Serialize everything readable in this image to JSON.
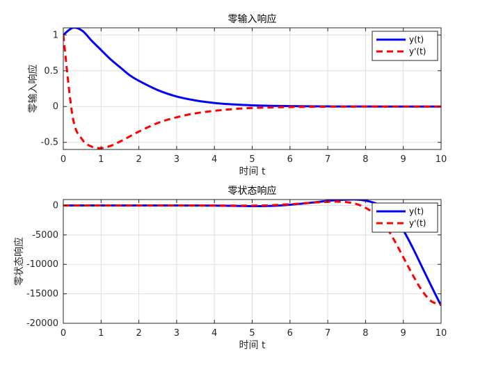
{
  "colors": {
    "y": "#0000ff",
    "yp": "#ff0000",
    "grid": "#dfdfdf",
    "axis": "#262626"
  },
  "chart_data": [
    {
      "type": "line",
      "title": "零输入响应",
      "xlabel": "时间 t",
      "ylabel": "零输入响应",
      "xlim": [
        0,
        10
      ],
      "ylim": [
        -0.6,
        1.1
      ],
      "xticks": [
        "0",
        "1",
        "2",
        "3",
        "4",
        "5",
        "6",
        "7",
        "8",
        "9",
        "10"
      ],
      "yticks": [
        -0.5,
        0,
        0.5,
        1
      ],
      "ytick_labels": [
        "-0.5",
        "0",
        "0.5",
        "1"
      ],
      "grid": true,
      "legend": "top-right",
      "x": [
        0,
        0.25,
        0.5,
        0.75,
        1,
        1.25,
        1.5,
        1.75,
        2,
        2.5,
        3,
        3.5,
        4,
        4.5,
        5,
        5.5,
        6,
        6.5,
        7,
        7.5,
        8,
        8.5,
        9,
        9.5,
        10
      ],
      "series": [
        {
          "name": "y(t)",
          "style": "solid",
          "values": [
            1.0,
            1.1,
            1.06,
            0.92,
            0.79,
            0.66,
            0.55,
            0.44,
            0.36,
            0.23,
            0.14,
            0.085,
            0.05,
            0.03,
            0.017,
            0.01,
            0.006,
            0.003,
            0.002,
            0.001,
            0.0005,
            0.0003,
            0.0002,
            0.0001,
            0
          ]
        },
        {
          "name": "y'(t)",
          "style": "dashed",
          "values": [
            1.0,
            -0.15,
            -0.46,
            -0.56,
            -0.58,
            -0.55,
            -0.49,
            -0.42,
            -0.35,
            -0.23,
            -0.15,
            -0.095,
            -0.06,
            -0.035,
            -0.02,
            -0.012,
            -0.007,
            -0.004,
            -0.002,
            -0.001,
            -0.0006,
            -0.0003,
            -0.0002,
            -0.0001,
            0
          ]
        }
      ]
    },
    {
      "type": "line",
      "title": "零状态响应",
      "xlabel": "时间 t",
      "ylabel": "零状态响应",
      "xlim": [
        0,
        10
      ],
      "ylim": [
        -20000,
        1000
      ],
      "xticks": [
        "0",
        "1",
        "2",
        "3",
        "4",
        "5",
        "6",
        "7",
        "8",
        "9",
        "10"
      ],
      "yticks": [
        -20000,
        -15000,
        -10000,
        -5000,
        0
      ],
      "ytick_labels": [
        "-20000",
        "-15000",
        "-10000",
        "-5000",
        "0"
      ],
      "grid": true,
      "legend": "top-right",
      "x": [
        0,
        1,
        2,
        3,
        4,
        5,
        5.5,
        6,
        6.5,
        7,
        7.25,
        7.5,
        7.75,
        8,
        8.25,
        8.5,
        8.75,
        9,
        9.25,
        9.5,
        9.75,
        10
      ],
      "series": [
        {
          "name": "y(t)",
          "style": "solid",
          "values": [
            0,
            0,
            0,
            0,
            -30,
            -120,
            -80,
            120,
            420,
            780,
            900,
            980,
            1000,
            820,
            400,
            -300,
            -1800,
            -4200,
            -7200,
            -10500,
            -13800,
            -17000
          ]
        },
        {
          "name": "y'(t)",
          "style": "dashed",
          "values": [
            0,
            0,
            0,
            0,
            -10,
            -30,
            30,
            200,
            420,
            620,
            640,
            560,
            250,
            -400,
            -1500,
            -3200,
            -5800,
            -8800,
            -11800,
            -14500,
            -16300,
            -16800
          ]
        }
      ]
    }
  ]
}
